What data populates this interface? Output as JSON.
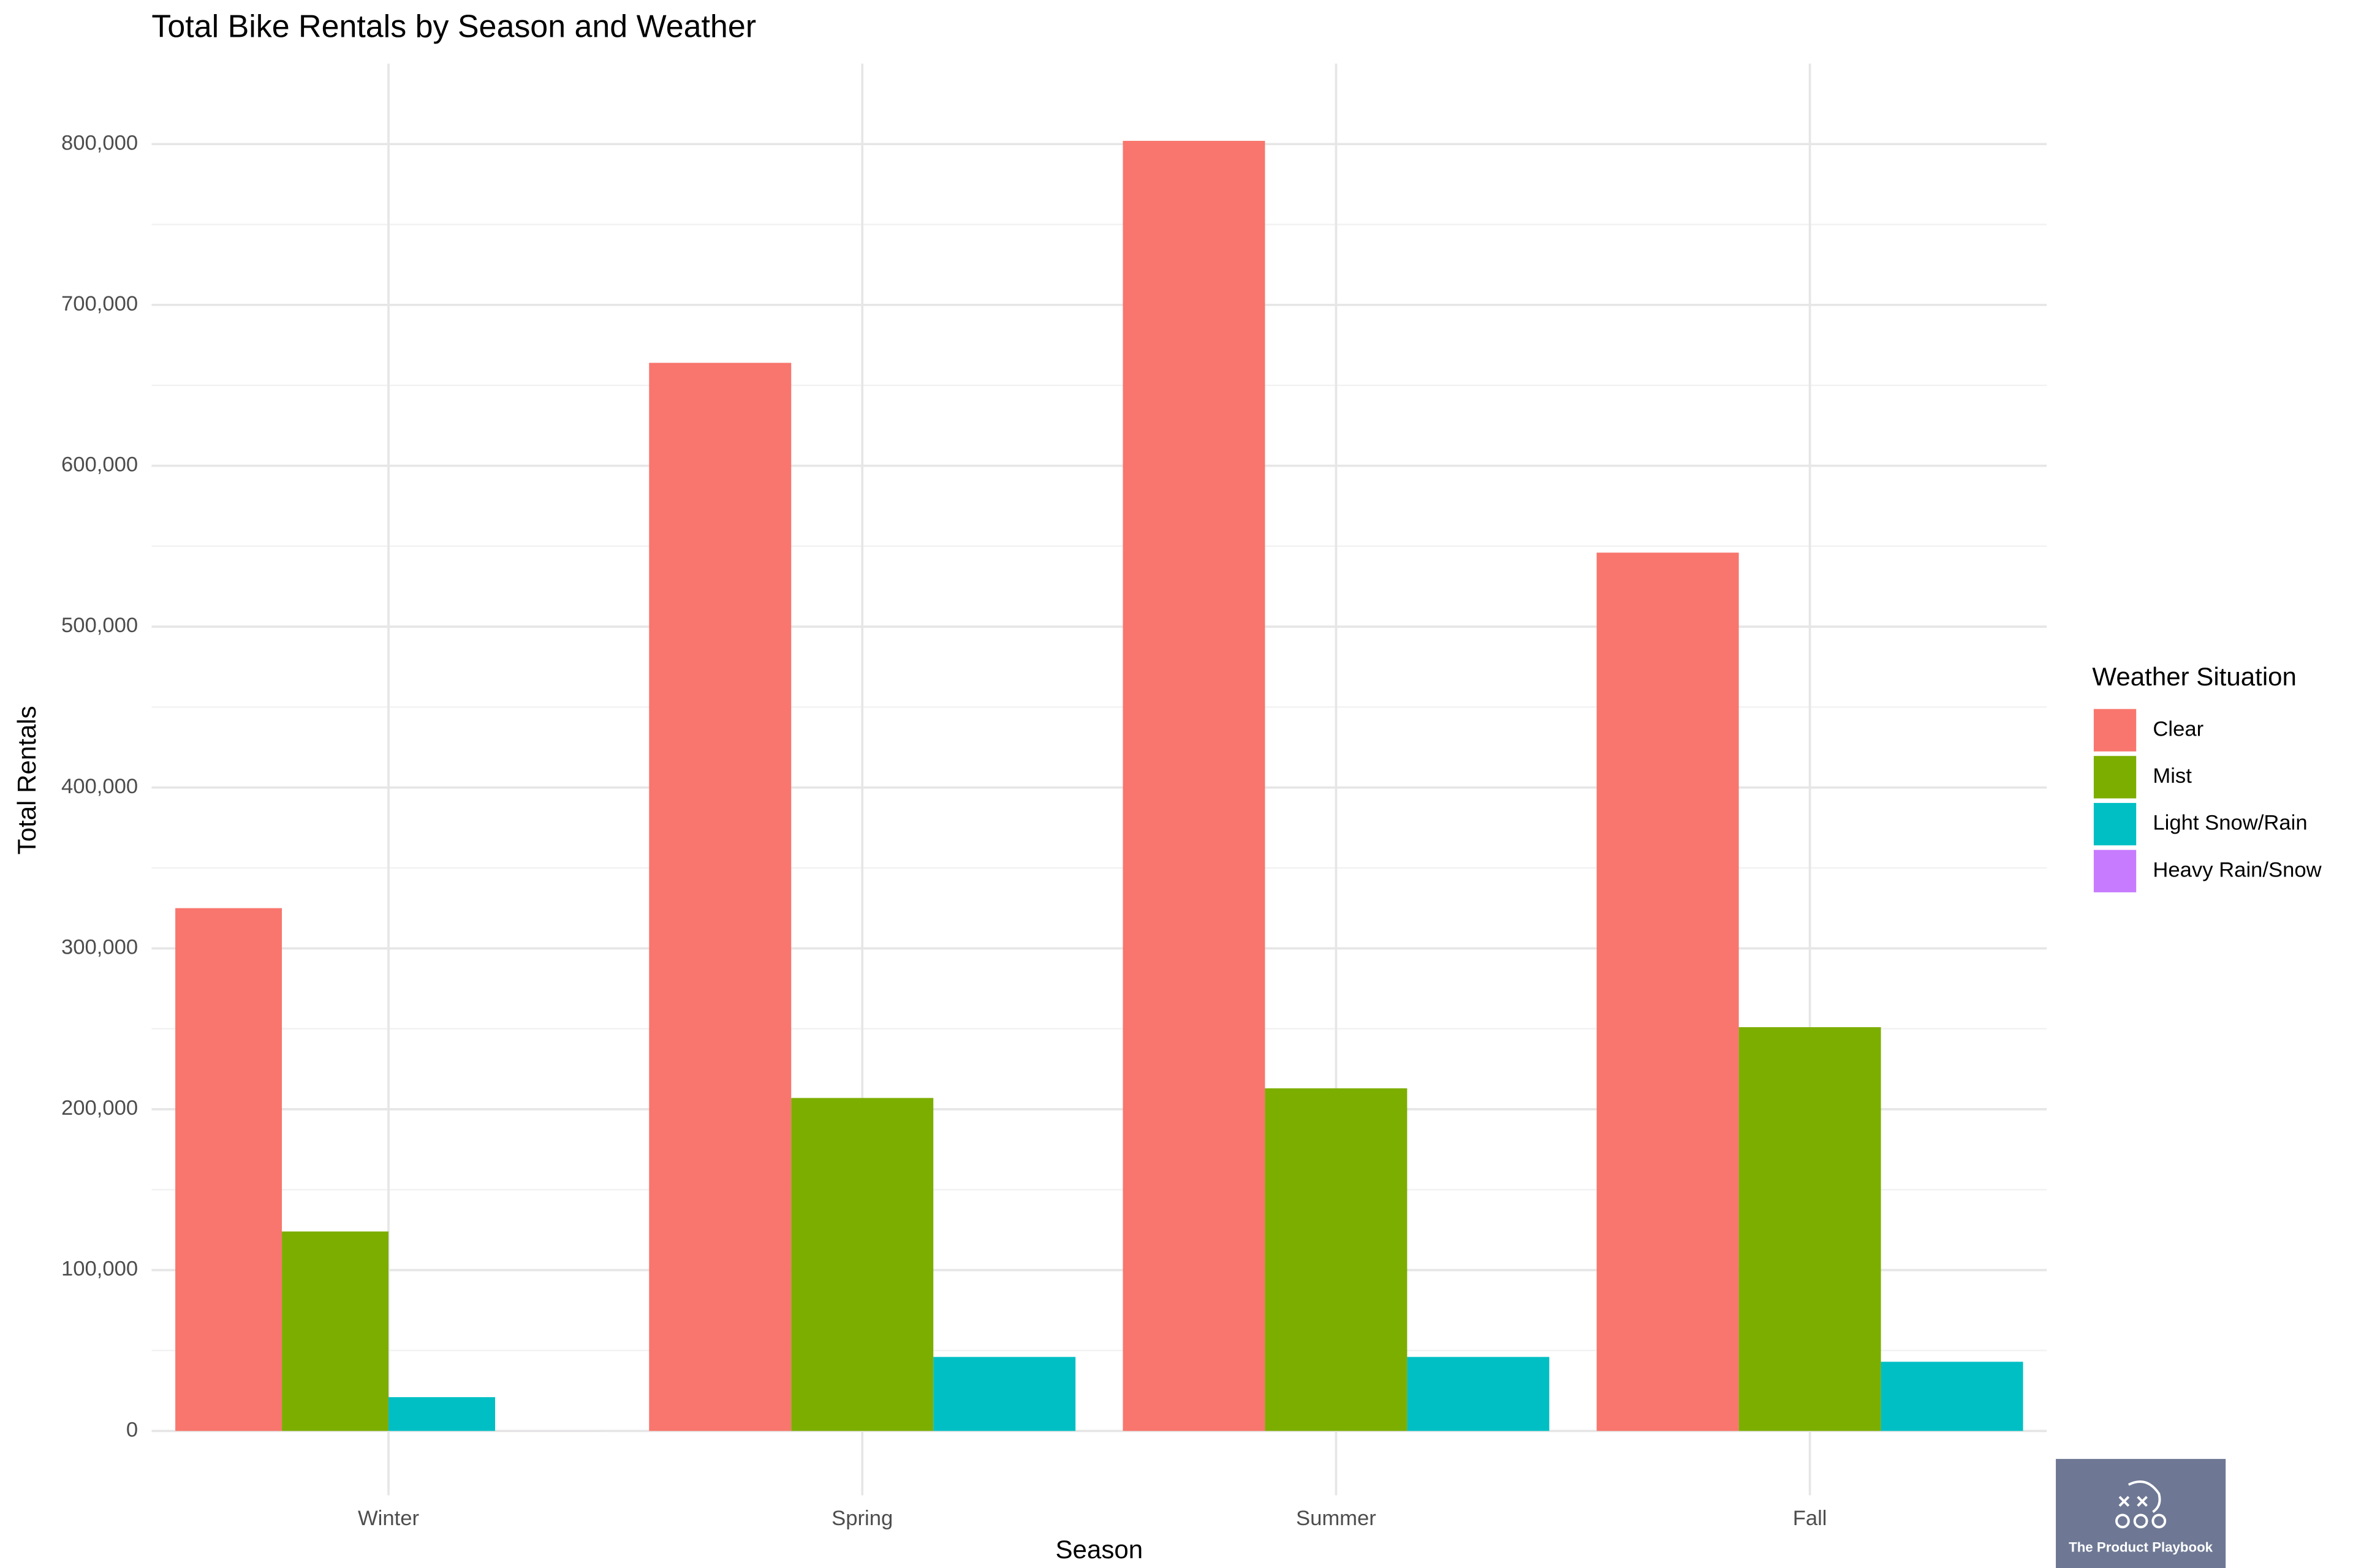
{
  "chart_data": {
    "type": "bar",
    "title": "Total Bike Rentals by Season and Weather",
    "x_label": "Season",
    "y_label": "Total Rentals",
    "categories": [
      "Winter",
      "Spring",
      "Summer",
      "Fall"
    ],
    "series": [
      {
        "name": "Clear",
        "color": "#F8766D",
        "values": [
          325000,
          664000,
          802000,
          546000
        ]
      },
      {
        "name": "Mist",
        "color": "#7CAE00",
        "values": [
          124000,
          207000,
          213000,
          251000
        ]
      },
      {
        "name": "Light Snow/Rain",
        "color": "#00BFC4",
        "values": [
          21000,
          46000,
          46000,
          43000
        ]
      },
      {
        "name": "Heavy Rain/Snow",
        "color": "#C77CFF",
        "values": [
          22,
          null,
          null,
          null
        ]
      }
    ],
    "ylim": [
      -40000,
      850000
    ],
    "yticks": [
      0,
      {
        "value": 100000,
        "label": "100,000"
      },
      {
        "value": 200000,
        "label": "200,000"
      },
      {
        "value": 300000,
        "label": "300,000"
      },
      {
        "value": 400000,
        "label": "400,000"
      },
      {
        "value": 500000,
        "label": "500,000"
      },
      {
        "value": 600000,
        "label": "600,000"
      },
      {
        "value": 700000,
        "label": "700,000"
      },
      {
        "value": 800000,
        "label": "800,000"
      }
    ],
    "grid": true,
    "legend": {
      "title": "Weather Situation",
      "position": "right"
    },
    "watermark": "The Product Playbook"
  }
}
